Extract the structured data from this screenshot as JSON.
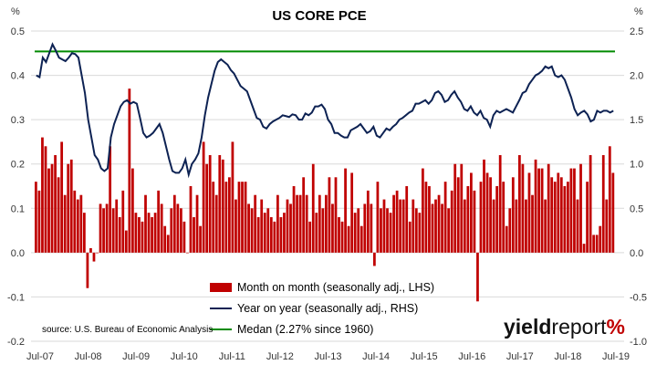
{
  "chart_data": {
    "type": "bar+line",
    "title": "US CORE PCE",
    "y_left_unit": "%",
    "y_right_unit": "%",
    "y_left_range": [
      -0.2,
      0.5
    ],
    "y_right_range": [
      -1.0,
      2.5
    ],
    "y_left_ticks": [
      "0.5",
      "0.4",
      "0.3",
      "0.2",
      "0.1",
      "0.0",
      "-0.1",
      "-0.2"
    ],
    "y_right_ticks": [
      "2.5",
      "2.0",
      "1.5",
      "1.0",
      "0.5",
      "0.0",
      "-0.5",
      "-1.0"
    ],
    "x_tick_labels": [
      "Jul-07",
      "Jul-08",
      "Jul-09",
      "Jul-10",
      "Jul-11",
      "Jul-12",
      "Jul-13",
      "Jul-14",
      "Jul-15",
      "Jul-16",
      "Jul-17",
      "Jul-18",
      "Jul-19"
    ],
    "x_start": "Jul-07",
    "x_end": "Jul-19",
    "mom_values": [
      0.16,
      0.14,
      0.26,
      0.24,
      0.19,
      0.2,
      0.22,
      0.17,
      0.25,
      0.13,
      0.2,
      0.21,
      0.14,
      0.12,
      0.13,
      0.09,
      -0.08,
      0.01,
      -0.02,
      0.0,
      0.11,
      0.1,
      0.11,
      0.24,
      0.1,
      0.12,
      0.08,
      0.14,
      0.05,
      0.37,
      0.19,
      0.09,
      0.08,
      0.07,
      0.13,
      0.09,
      0.08,
      0.09,
      0.14,
      0.11,
      0.06,
      0.04,
      0.1,
      0.13,
      0.11,
      0.1,
      0.07,
      0.0,
      0.15,
      0.08,
      0.13,
      0.06,
      0.25,
      0.2,
      0.22,
      0.16,
      0.13,
      0.22,
      0.21,
      0.16,
      0.17,
      0.25,
      0.12,
      0.16,
      0.16,
      0.16,
      0.11,
      0.1,
      0.13,
      0.08,
      0.12,
      0.09,
      0.1,
      0.08,
      0.07,
      0.13,
      0.08,
      0.09,
      0.12,
      0.11,
      0.15,
      0.13,
      0.13,
      0.17,
      0.13,
      0.07,
      0.2,
      0.09,
      0.13,
      0.1,
      0.13,
      0.17,
      0.11,
      0.17,
      0.08,
      0.07,
      0.19,
      0.06,
      0.18,
      0.09,
      0.1,
      0.06,
      0.11,
      0.14,
      0.11,
      -0.03,
      0.16,
      0.1,
      0.12,
      0.1,
      0.09,
      0.13,
      0.14,
      0.12,
      0.12,
      0.15,
      0.07,
      0.12,
      0.1,
      0.09,
      0.19,
      0.16,
      0.15,
      0.11,
      0.12,
      0.13,
      0.11,
      0.16,
      0.1,
      0.14,
      0.2,
      0.17,
      0.2,
      0.12,
      0.15,
      0.18,
      0.14,
      -0.11,
      0.16,
      0.21,
      0.18,
      0.17,
      0.12,
      0.15,
      0.22,
      0.16,
      0.06,
      0.1,
      0.17,
      0.12,
      0.22,
      0.2,
      0.12,
      0.18,
      0.13,
      0.21,
      0.19,
      0.19,
      0.12,
      0.2,
      0.17,
      0.16,
      0.18,
      0.17,
      0.15,
      0.16,
      0.19,
      0.19,
      0.12,
      0.2,
      0.02,
      0.16,
      0.22,
      0.04,
      0.04,
      0.06,
      0.22,
      0.12,
      0.24,
      0.18
    ],
    "yoy_values": [
      2.0,
      1.98,
      2.2,
      2.15,
      2.25,
      2.35,
      2.28,
      2.2,
      2.18,
      2.16,
      2.2,
      2.25,
      2.24,
      2.2,
      2.0,
      1.8,
      1.5,
      1.3,
      1.1,
      1.05,
      0.95,
      0.92,
      0.95,
      1.3,
      1.45,
      1.55,
      1.65,
      1.7,
      1.72,
      1.68,
      1.7,
      1.68,
      1.52,
      1.35,
      1.3,
      1.32,
      1.35,
      1.4,
      1.45,
      1.35,
      1.2,
      1.05,
      0.92,
      0.9,
      0.9,
      0.95,
      1.05,
      0.88,
      1.0,
      1.05,
      1.12,
      1.3,
      1.55,
      1.75,
      1.9,
      2.05,
      2.15,
      2.18,
      2.15,
      2.12,
      2.06,
      2.02,
      1.95,
      1.88,
      1.85,
      1.82,
      1.72,
      1.62,
      1.52,
      1.5,
      1.42,
      1.4,
      1.45,
      1.48,
      1.5,
      1.52,
      1.55,
      1.54,
      1.53,
      1.56,
      1.55,
      1.5,
      1.5,
      1.57,
      1.55,
      1.58,
      1.65,
      1.65,
      1.67,
      1.62,
      1.5,
      1.45,
      1.35,
      1.35,
      1.32,
      1.3,
      1.3,
      1.38,
      1.4,
      1.42,
      1.45,
      1.4,
      1.35,
      1.37,
      1.42,
      1.32,
      1.3,
      1.35,
      1.4,
      1.38,
      1.42,
      1.45,
      1.5,
      1.52,
      1.55,
      1.58,
      1.6,
      1.68,
      1.68,
      1.7,
      1.72,
      1.68,
      1.72,
      1.8,
      1.82,
      1.78,
      1.7,
      1.72,
      1.78,
      1.82,
      1.75,
      1.7,
      1.62,
      1.6,
      1.65,
      1.58,
      1.55,
      1.6,
      1.52,
      1.5,
      1.42,
      1.55,
      1.6,
      1.58,
      1.6,
      1.62,
      1.6,
      1.58,
      1.65,
      1.72,
      1.8,
      1.82,
      1.9,
      1.95,
      2.0,
      2.02,
      2.05,
      2.1,
      2.08,
      2.1,
      2.0,
      1.98,
      2.0,
      1.95,
      1.85,
      1.75,
      1.62,
      1.55,
      1.58,
      1.6,
      1.56,
      1.48,
      1.5,
      1.6,
      1.58,
      1.6,
      1.6,
      1.58,
      1.6
    ],
    "median_value_rhs": 2.27,
    "series": [
      {
        "name": "Month on month (seasonally adj., LHS)",
        "type": "bar",
        "axis": "left",
        "color": "#c00000"
      },
      {
        "name": "Year on year (seasonally adj., RHS)",
        "type": "line",
        "axis": "right",
        "color": "#0d2253"
      },
      {
        "name": "Medan (2.27% since 1960)",
        "type": "line",
        "axis": "right",
        "color": "#008a00"
      }
    ],
    "legend_placement": "bottom-center",
    "grid": "horizontal",
    "source": "source: U.S. Bureau of Economic Analysis",
    "logo": {
      "part1": "yield",
      "part2": "report",
      "part3": "%"
    }
  }
}
